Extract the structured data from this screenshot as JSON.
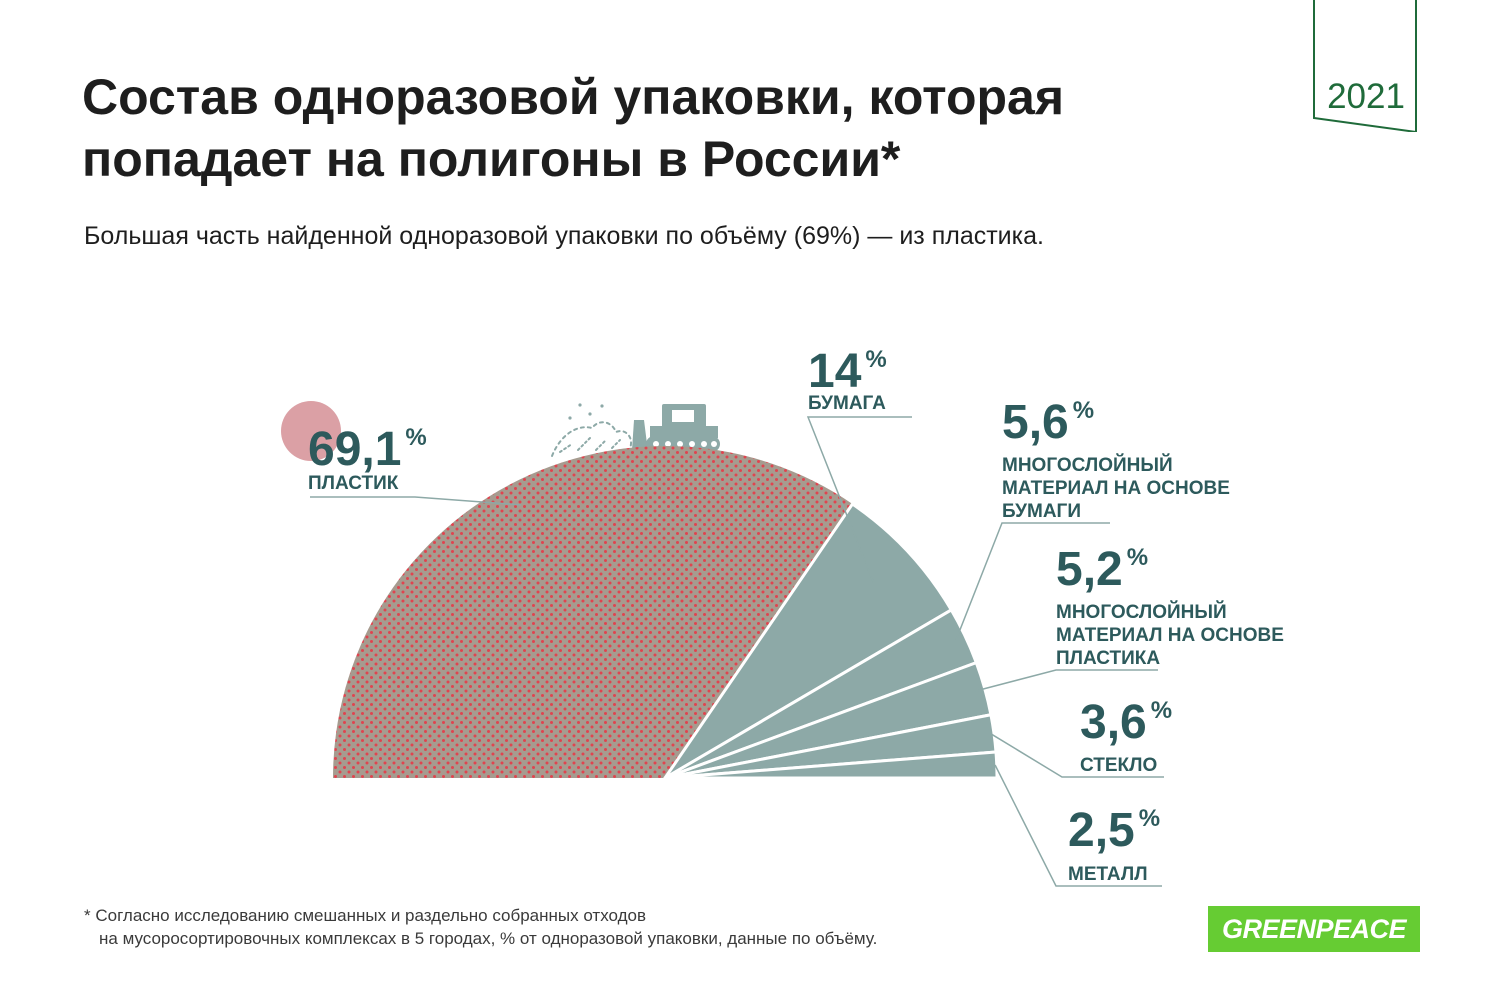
{
  "header": {
    "title_line1": "Состав одноразовой упаковки, которая",
    "title_line2": "попадает на полигоны в России*",
    "subtitle": "Большая часть найденной одноразовой упаковки по объёму (69%) — из пластика.",
    "year": "2021"
  },
  "colors": {
    "plastic": "#a69b8f",
    "plastic_dots": "#e0444f",
    "other": "#8da9a7",
    "value_text": "#2d5a5c",
    "label_text": "#2d5a5c",
    "leader": "#8da9a7",
    "marker": "#dba0a5",
    "brand_green": "#66cc33",
    "year_green": "#1f6b3a"
  },
  "icons": {
    "marker": "circle-marker-icon",
    "dump": "garbage-pile-icon",
    "bulldozer": "bulldozer-icon"
  },
  "chart_data": {
    "type": "pie",
    "shape": "semicircle",
    "unit": "%",
    "slices": [
      {
        "id": "plastic",
        "label": "ПЛАСТИК",
        "label_lines": [
          "ПЛАСТИК"
        ],
        "value": 69.1,
        "value_label": "69,1"
      },
      {
        "id": "paper",
        "label": "БУМАГА",
        "label_lines": [
          "БУМАГА"
        ],
        "value": 14,
        "value_label": "14"
      },
      {
        "id": "multi-paper",
        "label": "МНОГОСЛОЙНЫЙ МАТЕРИАЛ НА ОСНОВЕ БУМАГИ",
        "label_lines": [
          "МНОГОСЛОЙНЫЙ",
          "МАТЕРИАЛ НА ОСНОВЕ",
          "БУМАГИ"
        ],
        "value": 5.6,
        "value_label": "5,6"
      },
      {
        "id": "multi-plastic",
        "label": "МНОГОСЛОЙНЫЙ МАТЕРИАЛ НА ОСНОВЕ ПЛАСТИКА",
        "label_lines": [
          "МНОГОСЛОЙНЫЙ",
          "МАТЕРИАЛ НА ОСНОВЕ",
          "ПЛАСТИКА"
        ],
        "value": 5.2,
        "value_label": "5,2"
      },
      {
        "id": "glass",
        "label": "СТЕКЛО",
        "label_lines": [
          "СТЕКЛО"
        ],
        "value": 3.6,
        "value_label": "3,6"
      },
      {
        "id": "metal",
        "label": "МЕТАЛЛ",
        "label_lines": [
          "МЕТАЛЛ"
        ],
        "value": 2.5,
        "value_label": "2,5"
      }
    ]
  },
  "footnote": {
    "line1": "* Согласно исследованию смешанных и раздельно собранных отходов",
    "line2": "на мусоросортировочных комплексах в 5 городах, % от одноразовой упаковки, данные по объёму."
  },
  "logo": {
    "text": "GREENPEACE"
  }
}
